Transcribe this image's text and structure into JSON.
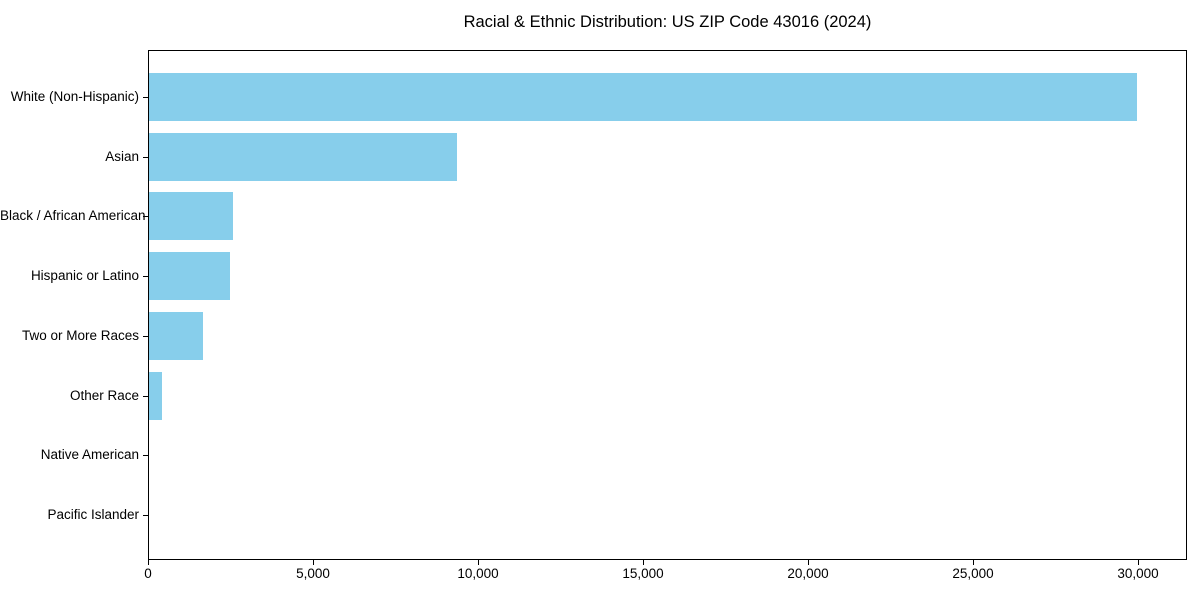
{
  "chart_data": {
    "type": "bar",
    "orientation": "horizontal",
    "title": "Racial & Ethnic Distribution: US ZIP Code 43016 (2024)",
    "categories": [
      "White (Non-Hispanic)",
      "Asian",
      "Black / African American",
      "Hispanic or Latino",
      "Two or More Races",
      "Other Race",
      "Native American",
      "Pacific Islander"
    ],
    "values": [
      30000,
      9370,
      2540,
      2470,
      1630,
      390,
      0,
      0
    ],
    "xlabel": "",
    "ylabel": "",
    "xlim": [
      0,
      31500
    ],
    "x_ticks": [
      0,
      5000,
      10000,
      15000,
      20000,
      25000,
      30000
    ],
    "x_tick_labels": [
      "0",
      "5,000",
      "10,000",
      "15,000",
      "20,000",
      "25,000",
      "30,000"
    ],
    "grid": false,
    "legend_position": "none",
    "bar_color": "#87CEEB",
    "axis_color": "#000000",
    "text_color": "#000000",
    "background_color": "#FFFFFF"
  }
}
